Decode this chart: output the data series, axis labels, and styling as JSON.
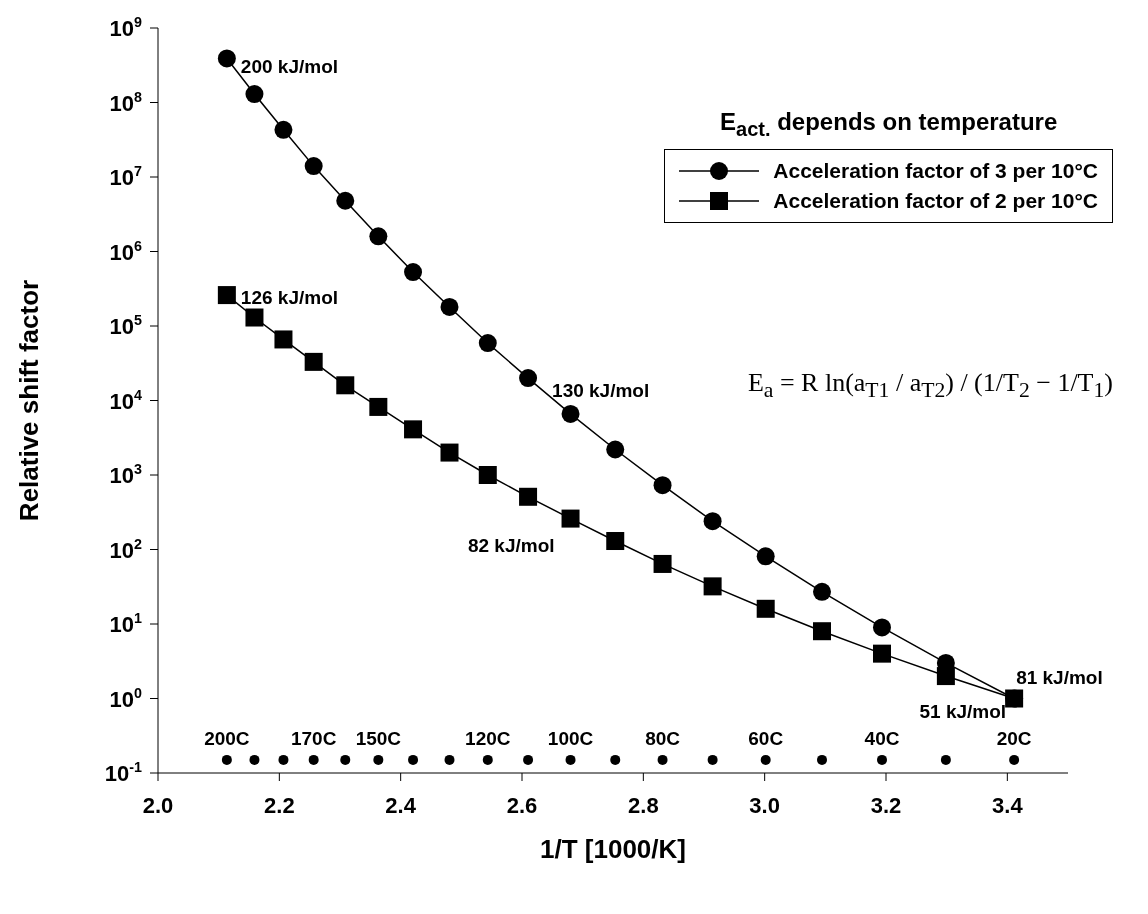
{
  "chart_data": {
    "type": "line",
    "xlabel": "1/T [1000/K]",
    "ylabel": "Relative shift factor",
    "legend_title": "E$_{act.}$ depends on temperature",
    "legend": "top right",
    "log": "y",
    "grid": false,
    "xlim": [
      2.0,
      3.5
    ],
    "xticks": [
      {
        "value": 2.0,
        "label": "2.0"
      },
      {
        "value": 2.2,
        "label": "2.2"
      },
      {
        "value": 2.4,
        "label": "2.4"
      },
      {
        "value": 2.6,
        "label": "2.6"
      },
      {
        "value": 2.8,
        "label": "2.8"
      },
      {
        "value": 3.0,
        "label": "3.0"
      },
      {
        "value": 3.2,
        "label": "3.2"
      },
      {
        "value": 3.4,
        "label": "3.4"
      }
    ],
    "ylim": [
      0.1,
      1000000000
    ],
    "yticks": [
      {
        "value": 0.1,
        "label": "10$^{-1}$"
      },
      {
        "value": 1,
        "label": "10$^{0}$"
      },
      {
        "value": 10,
        "label": "10$^{1}$"
      },
      {
        "value": 100,
        "label": "10$^{2}$"
      },
      {
        "value": 1000,
        "label": "10$^{3}$"
      },
      {
        "value": 10000,
        "label": "10$^{4}$"
      },
      {
        "value": 100000,
        "label": "10$^{5}$"
      },
      {
        "value": 1000000,
        "label": "10$^{6}$"
      },
      {
        "value": 10000000,
        "label": "10$^{7}$"
      },
      {
        "value": 100000000,
        "label": "10$^{8}$"
      },
      {
        "value": 1000000000,
        "label": "10$^{9}$"
      }
    ],
    "x": [
      2.1135,
      2.159,
      2.2068,
      2.2566,
      2.3087,
      2.3632,
      2.4204,
      2.4805,
      2.5436,
      2.61,
      2.68,
      2.7537,
      2.8317,
      2.9142,
      3.0017,
      3.0945,
      3.1934,
      3.2987,
      3.4112
    ],
    "series": [
      {
        "name": "Acceleration factor of 3 per 10°C",
        "marker": "circle",
        "color": "#000000",
        "values": [
          390000000,
          130000000,
          43000000,
          14000000,
          4800000,
          1600000,
          530000,
          180000,
          59000,
          20000,
          6600,
          2200,
          730,
          240,
          81,
          27,
          9,
          3,
          1
        ]
      },
      {
        "name": "Acceleration factor of 2 per 10°C",
        "marker": "square",
        "color": "#000000",
        "values": [
          260000,
          130000,
          66000,
          33000,
          16000,
          8200,
          4100,
          2000,
          1000,
          510,
          260,
          130,
          64,
          32,
          16,
          8,
          4,
          2,
          1
        ]
      },
      {
        "type": "scatter",
        "marker": "circle",
        "color": "#000000",
        "values": [
          0.15,
          0.15,
          0.15,
          0.15,
          0.15,
          0.15,
          0.15,
          0.15,
          0.15,
          0.15,
          0.15,
          0.15,
          0.15,
          0.15,
          0.15,
          0.15,
          0.15,
          0.15,
          0.15
        ]
      }
    ],
    "annotations": [
      {
        "text": "200 kJ/mol",
        "x": 2.1135,
        "y": 390000000
      },
      {
        "text": "126 kJ/mol",
        "x": 2.1135,
        "y": 260000
      },
      {
        "text": "130 kJ/mol",
        "x": 2.61,
        "y": 20000
      },
      {
        "text": "82 kJ/mol",
        "x": 2.68,
        "y": 260
      },
      {
        "text": "81 kJ/mol",
        "x": 3.4112,
        "y": 1
      },
      {
        "text": "51 kJ/mol",
        "x": 3.4112,
        "y": 1
      },
      {
        "text": "200C",
        "x": 2.1135,
        "y": 0.15
      },
      {
        "text": "170C",
        "x": 2.2566,
        "y": 0.15
      },
      {
        "text": "150C",
        "x": 2.3632,
        "y": 0.15
      },
      {
        "text": "120C",
        "x": 2.5436,
        "y": 0.15
      },
      {
        "text": "100C",
        "x": 2.68,
        "y": 0.15
      },
      {
        "text": "80C",
        "x": 2.8317,
        "y": 0.15
      },
      {
        "text": "60C",
        "x": 3.0017,
        "y": 0.15
      },
      {
        "text": "40C",
        "x": 3.1934,
        "y": 0.15
      },
      {
        "text": "20C",
        "x": 3.4112,
        "y": 0.15
      },
      "E$_{a}$ = R ln(a$_{T1}$ / a$_{T2}$) / (1/T$_{2}$ − 1/T$_{1}$)"
    ]
  }
}
